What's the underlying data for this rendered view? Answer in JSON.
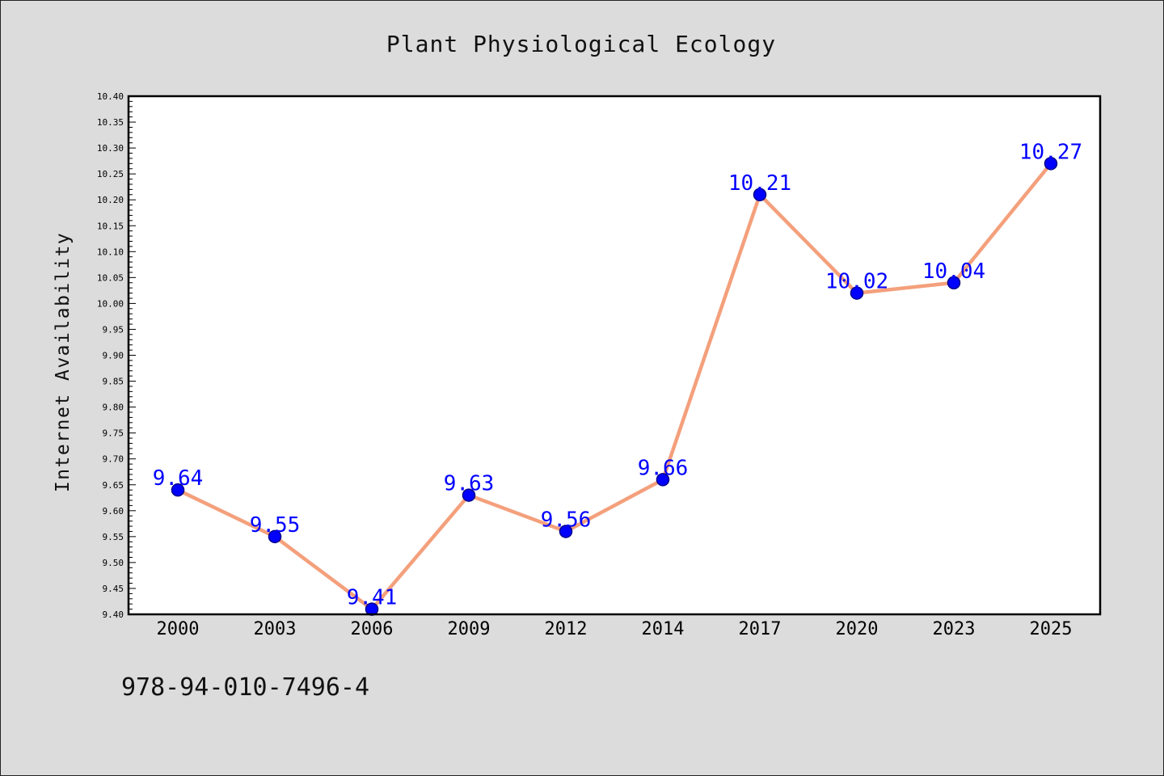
{
  "chart_data": {
    "type": "line",
    "title": "Plant Physiological Ecology",
    "xlabel": "",
    "ylabel": "Internet Availability",
    "categories": [
      "2000",
      "2003",
      "2006",
      "2009",
      "2012",
      "2014",
      "2017",
      "2020",
      "2023",
      "2025"
    ],
    "series": [
      {
        "values": [
          9.64,
          9.55,
          9.41,
          9.63,
          9.56,
          9.66,
          10.21,
          10.02,
          10.04,
          10.27
        ],
        "labels": [
          "9.64",
          "9.55",
          "9.41",
          "9.63",
          "9.56",
          "9.66",
          "10.21",
          "10.02",
          "10.04",
          "10.27"
        ],
        "line_color": "#f4a07c",
        "marker_color": "#0000ff"
      }
    ],
    "ylim": [
      9.4,
      10.4
    ],
    "yticks": [
      "9.40",
      "9.45",
      "9.50",
      "9.55",
      "9.60",
      "9.65",
      "9.70",
      "9.75",
      "9.80",
      "9.85",
      "9.90",
      "9.95",
      "10.00",
      "10.05",
      "10.10",
      "10.15",
      "10.20",
      "10.25",
      "10.30",
      "10.35",
      "10.40"
    ],
    "grid": false,
    "legend": "none"
  },
  "footer": {
    "isbn": "978-94-010-7496-4"
  }
}
